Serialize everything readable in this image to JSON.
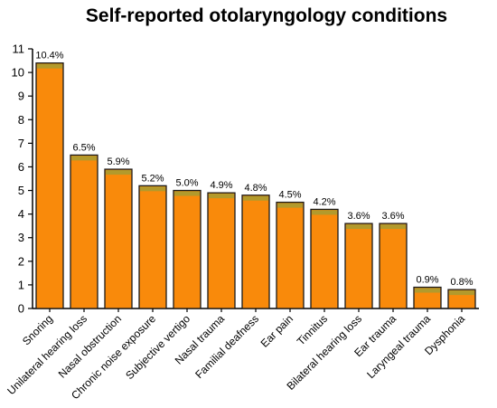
{
  "chart_data": {
    "type": "bar",
    "title": "Self-reported otolaryngology conditions",
    "xlabel": "",
    "ylabel": "",
    "ylim": [
      0,
      11
    ],
    "yticks": [
      0,
      1,
      2,
      3,
      4,
      5,
      6,
      7,
      8,
      9,
      10,
      11
    ],
    "grid": false,
    "categories": [
      "Snoring",
      "Unilateral hearing loss",
      "Nasal obstruction",
      "Chronic noise exposure",
      "Subjective vertigo",
      "Nasal trauma",
      "Familial deafness",
      "Ear pain",
      "Tinnitus",
      "Bilateral hearing loss",
      "Ear trauma",
      "Laryngeal trauma",
      "Dysphonia"
    ],
    "values": [
      10.4,
      6.5,
      5.9,
      5.2,
      5.0,
      4.9,
      4.8,
      4.5,
      4.2,
      3.6,
      3.6,
      0.9,
      0.8
    ],
    "data_labels": [
      "10.4%",
      "6.5%",
      "5.9%",
      "5.2%",
      "5.0%",
      "4.9%",
      "4.8%",
      "4.5%",
      "4.2%",
      "3.6%",
      "3.6%",
      "0.9%",
      "0.8%"
    ],
    "colors": {
      "bar_fill": "#f98a0b",
      "bar_top": "#b29a2c",
      "bar_edge": "#1a1a1a",
      "axis": "#000000"
    }
  }
}
